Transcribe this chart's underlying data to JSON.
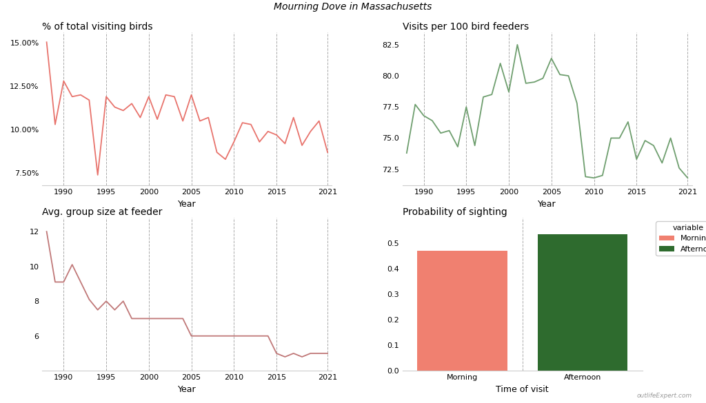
{
  "title": "Mourning Dove in Massachusetts",
  "background_color": "#ffffff",
  "pct_years": [
    1988,
    1989,
    1990,
    1991,
    1992,
    1993,
    1994,
    1995,
    1996,
    1997,
    1998,
    1999,
    2000,
    2001,
    2002,
    2003,
    2004,
    2005,
    2006,
    2007,
    2008,
    2009,
    2010,
    2011,
    2012,
    2013,
    2014,
    2015,
    2016,
    2017,
    2018,
    2019,
    2020,
    2021
  ],
  "pct_values": [
    0.1503,
    0.103,
    0.128,
    0.119,
    0.12,
    0.117,
    0.074,
    0.119,
    0.113,
    0.111,
    0.115,
    0.107,
    0.119,
    0.106,
    0.12,
    0.119,
    0.105,
    0.12,
    0.105,
    0.107,
    0.087,
    0.083,
    0.093,
    0.104,
    0.103,
    0.093,
    0.099,
    0.097,
    0.092,
    0.107,
    0.091,
    0.099,
    0.105,
    0.087
  ],
  "pct_color": "#e8736c",
  "pct_title": "% of total visiting birds",
  "pct_yticks": [
    0.075,
    0.1,
    0.125,
    0.15
  ],
  "pct_ytick_labels": [
    "7.50%",
    "10.00%",
    "12.50%",
    "15.00%"
  ],
  "pct_ylim": [
    0.068,
    0.156
  ],
  "visits_years": [
    1988,
    1989,
    1990,
    1991,
    1992,
    1993,
    1994,
    1995,
    1996,
    1997,
    1998,
    1999,
    2000,
    2001,
    2002,
    2003,
    2004,
    2005,
    2006,
    2007,
    2008,
    2009,
    2010,
    2011,
    2012,
    2013,
    2014,
    2015,
    2016,
    2017,
    2018,
    2019,
    2020,
    2021
  ],
  "visits_values": [
    73.8,
    77.7,
    76.8,
    76.4,
    75.4,
    75.6,
    74.3,
    77.5,
    74.4,
    78.3,
    78.5,
    81.0,
    78.7,
    82.5,
    79.4,
    79.5,
    79.8,
    81.4,
    80.1,
    80.0,
    77.8,
    71.9,
    71.8,
    72.0,
    75.0,
    75.0,
    76.3,
    73.3,
    74.8,
    74.4,
    73.0,
    75.0,
    72.6,
    71.8
  ],
  "visits_color": "#6e9e6e",
  "visits_title": "Visits per 100 bird feeders",
  "visits_yticks": [
    72.5,
    75.0,
    77.5,
    80.0,
    82.5
  ],
  "visits_ylim": [
    71.2,
    83.5
  ],
  "group_years": [
    1988,
    1989,
    1990,
    1991,
    1992,
    1993,
    1994,
    1995,
    1996,
    1997,
    1998,
    1999,
    2000,
    2001,
    2002,
    2003,
    2004,
    2005,
    2006,
    2007,
    2008,
    2009,
    2010,
    2011,
    2012,
    2013,
    2014,
    2015,
    2016,
    2017,
    2018,
    2019,
    2020,
    2021
  ],
  "group_values": [
    12.0,
    9.1,
    9.1,
    10.1,
    9.1,
    8.1,
    7.5,
    8.0,
    7.5,
    8.0,
    7.0,
    7.0,
    7.0,
    7.0,
    7.0,
    7.0,
    7.0,
    6.0,
    6.0,
    6.0,
    6.0,
    6.0,
    6.0,
    6.0,
    6.0,
    6.0,
    6.0,
    5.0,
    4.8,
    5.0,
    4.8,
    5.0,
    5.0,
    5.0
  ],
  "group_color": "#c07878",
  "group_title": "Avg. group size at feeder",
  "group_yticks": [
    6,
    8,
    10,
    12
  ],
  "group_ylim": [
    4.0,
    12.8
  ],
  "bar_categories": [
    "Morning",
    "Afternoon"
  ],
  "bar_values": [
    0.47,
    0.535
  ],
  "bar_colors": [
    "#f08070",
    "#2e6b2e"
  ],
  "bar_title": "Probability of sighting",
  "bar_xlabel": "Time of visit",
  "bar_ylim": [
    0,
    0.6
  ],
  "bar_yticks": [
    0.0,
    0.1,
    0.2,
    0.3,
    0.4,
    0.5
  ],
  "legend_title": "variable",
  "legend_labels": [
    "Morning",
    "Afternoon"
  ],
  "legend_colors": [
    "#f08070",
    "#2e6b2e"
  ],
  "dashed_grid_color": "#aaaaaa",
  "dashed_grid_xticks": [
    1990,
    1995,
    2000,
    2005,
    2010,
    2015,
    2021
  ],
  "xlabel": "Year",
  "watermark": "outlifeExpert.com"
}
